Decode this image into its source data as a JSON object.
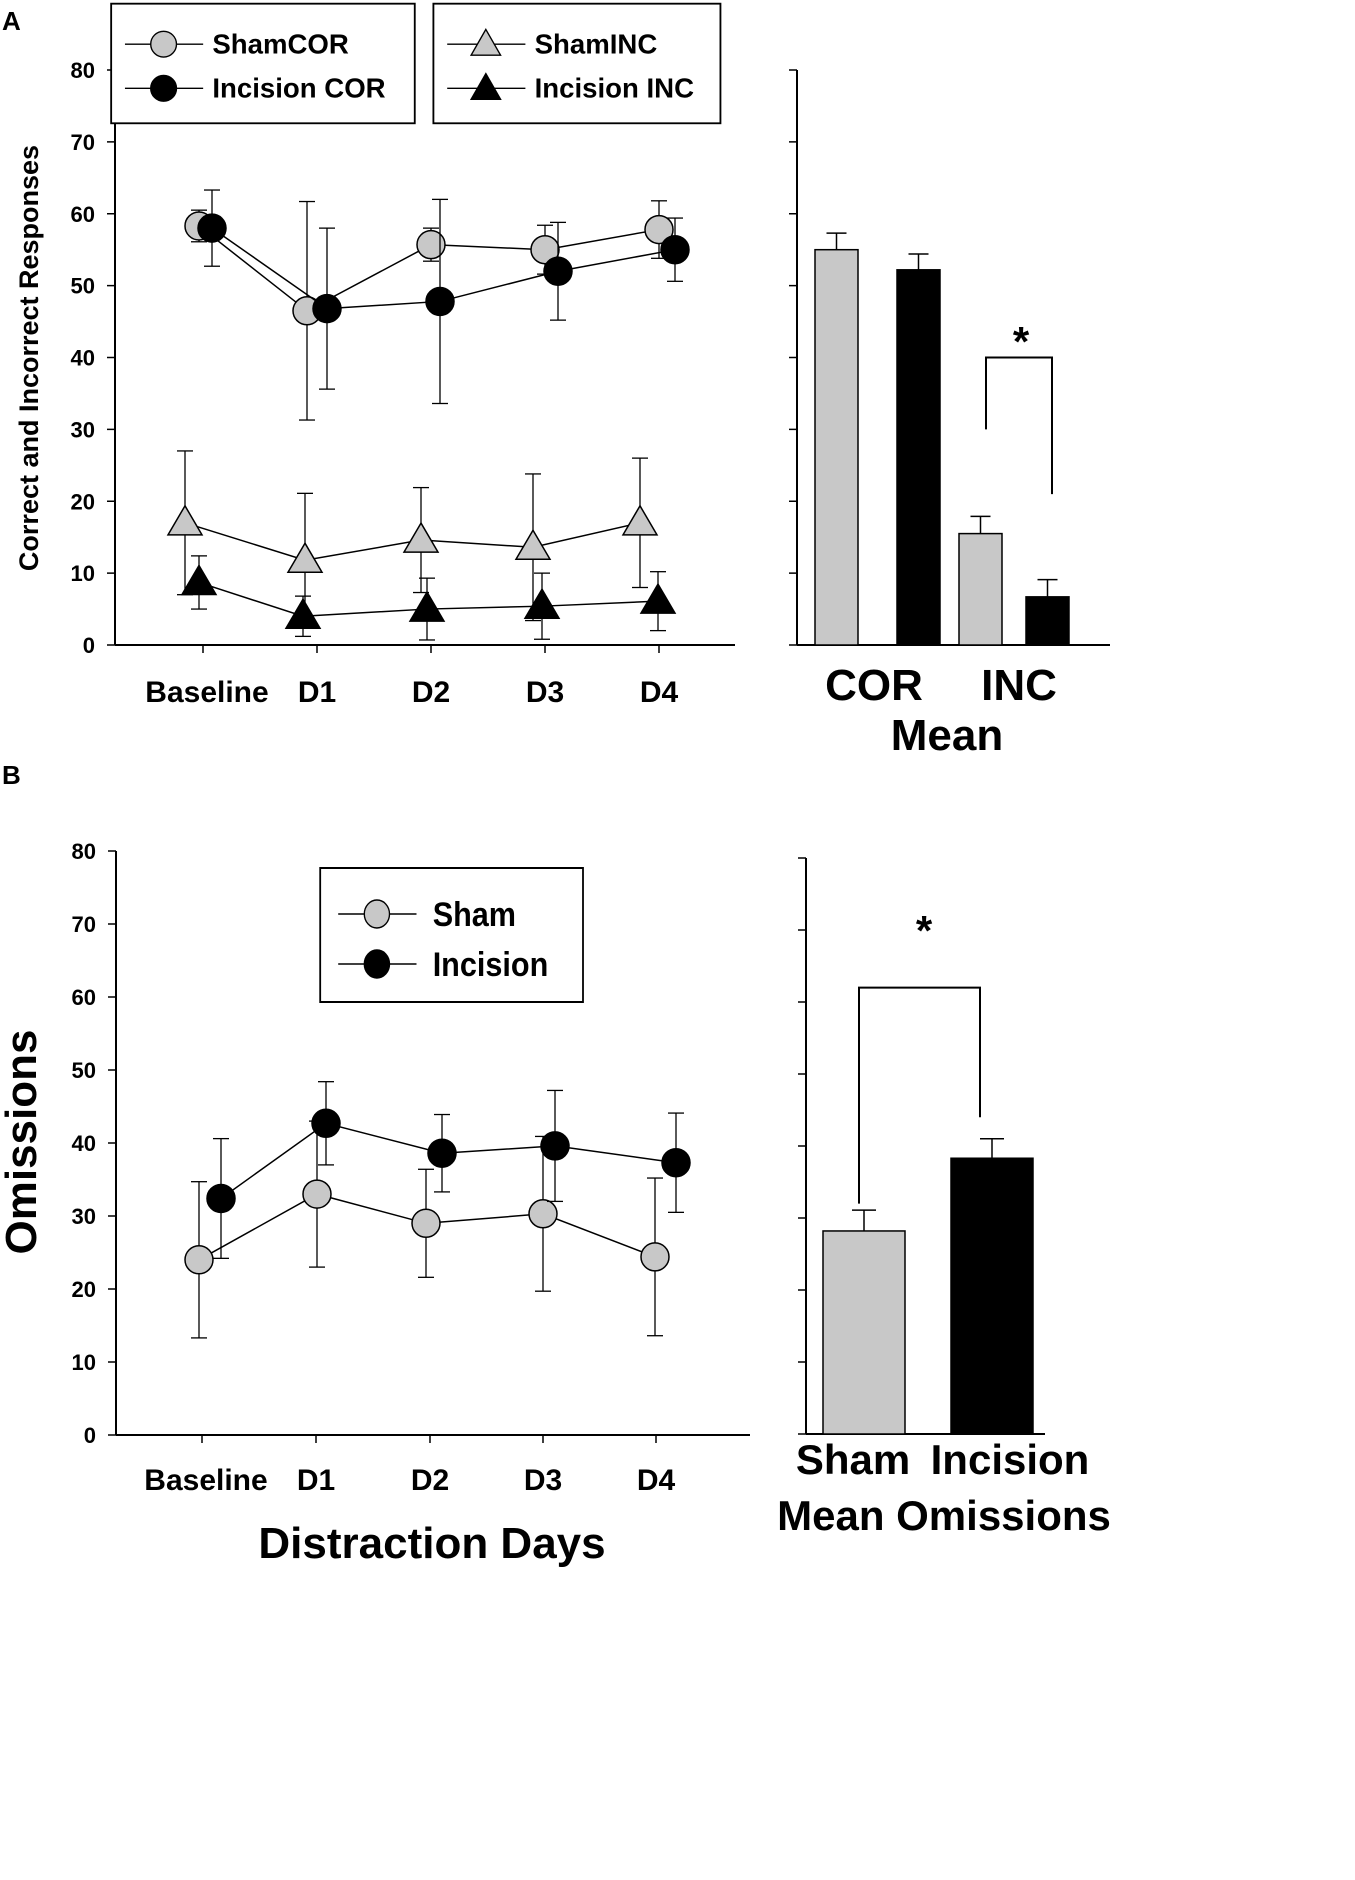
{
  "colors": {
    "sham": "#c8c8c8",
    "incision": "#000000",
    "stroke": "#000000"
  },
  "chart_data": [
    {
      "id": "A-line",
      "panel_label": "A",
      "type": "line",
      "ylabel": "Correct and Incorrect Responses",
      "xlabel": "",
      "ylim": [
        0,
        80
      ],
      "yticks": [
        0,
        10,
        20,
        30,
        40,
        50,
        60,
        70,
        80
      ],
      "categories": [
        "Baseline",
        "D1",
        "D2",
        "D3",
        "D4"
      ],
      "legend_left": [
        "ShamCOR",
        "Incision COR"
      ],
      "legend_right": [
        "ShamINC",
        "Incision INC"
      ],
      "series": [
        {
          "name": "ShamCOR",
          "marker": "circle",
          "color": "#c8c8c8",
          "values": [
            58.3,
            46.5,
            55.7,
            55.0,
            57.8
          ],
          "err": [
            2.2,
            15.2,
            2.3,
            3.4,
            4.0
          ]
        },
        {
          "name": "Incision COR",
          "marker": "circle",
          "color": "#000000",
          "values": [
            58.0,
            46.8,
            47.8,
            52.0,
            55.0
          ],
          "err": [
            5.3,
            11.2,
            14.2,
            6.8,
            4.4
          ]
        },
        {
          "name": "ShamINC",
          "marker": "triangle",
          "color": "#c8c8c8",
          "values": [
            17.0,
            11.8,
            14.6,
            13.6,
            17.0
          ],
          "err": [
            10.0,
            9.3,
            7.3,
            10.2,
            9.0
          ]
        },
        {
          "name": "Incision INC",
          "marker": "triangle",
          "color": "#000000",
          "values": [
            8.7,
            4.0,
            5.0,
            5.4,
            6.1
          ],
          "err": [
            3.7,
            2.8,
            4.3,
            4.6,
            4.1
          ]
        }
      ]
    },
    {
      "id": "A-bar",
      "type": "bar",
      "title": "Mean",
      "ylim": [
        0,
        80
      ],
      "categories": [
        "COR",
        "INC"
      ],
      "series": [
        {
          "name": "Sham",
          "color": "#c8c8c8",
          "values": [
            55.0,
            15.5
          ],
          "err": [
            2.3,
            2.4
          ]
        },
        {
          "name": "Incision",
          "color": "#000000",
          "values": [
            52.2,
            6.7
          ],
          "err": [
            2.2,
            2.4
          ]
        }
      ],
      "significance": "*"
    },
    {
      "id": "B-line",
      "panel_label": "B",
      "type": "line",
      "ylabel": "Omissions",
      "xlabel": "Distraction Days",
      "ylim": [
        0,
        80
      ],
      "yticks": [
        0,
        10,
        20,
        30,
        40,
        50,
        60,
        70,
        80
      ],
      "categories": [
        "Baseline",
        "D1",
        "D2",
        "D3",
        "D4"
      ],
      "legend": [
        "Sham",
        "Incision"
      ],
      "series": [
        {
          "name": "Sham",
          "marker": "circle",
          "color": "#c8c8c8",
          "values": [
            24.0,
            33.0,
            29.0,
            30.3,
            24.4
          ],
          "err": [
            10.7,
            10.0,
            7.4,
            10.6,
            10.8
          ]
        },
        {
          "name": "Incision",
          "marker": "circle",
          "color": "#000000",
          "values": [
            32.4,
            42.7,
            38.6,
            39.6,
            37.3
          ],
          "err": [
            8.2,
            5.7,
            5.3,
            7.6,
            6.8
          ]
        }
      ]
    },
    {
      "id": "B-bar",
      "type": "bar",
      "title": "Mean Omissions",
      "ylim": [
        0,
        80
      ],
      "categories": [
        "Sham",
        "Incision"
      ],
      "values": [
        28.2,
        38.3
      ],
      "err": [
        2.9,
        2.7
      ],
      "colors": [
        "#c8c8c8",
        "#000000"
      ],
      "significance": "*"
    }
  ]
}
